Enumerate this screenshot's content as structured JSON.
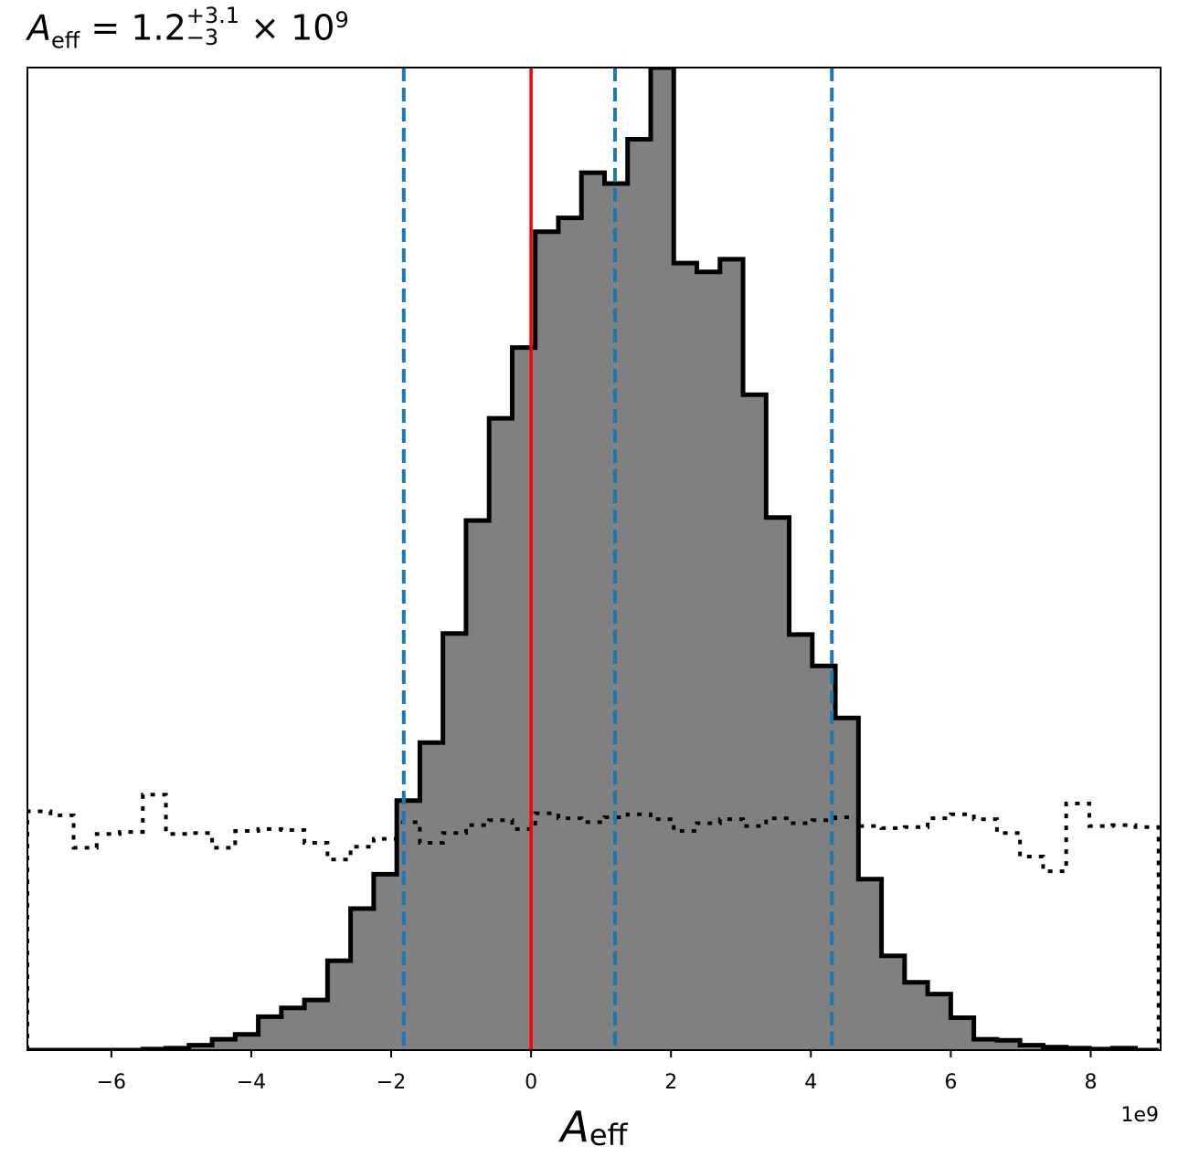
{
  "chart_data": {
    "type": "histogram",
    "title": {
      "symbol": "A",
      "subscript": "eff",
      "equals": "=",
      "median": "1.2",
      "upper": "+3.1",
      "lower": "−3",
      "factor": "× 10",
      "exponent": "9"
    },
    "xlabel": {
      "symbol": "A",
      "subscript": "eff"
    },
    "x_offset_text": "1e9",
    "xlim": [
      -7.2,
      9.0
    ],
    "x_ticks": [
      -6,
      -4,
      -2,
      0,
      2,
      4,
      6,
      8
    ],
    "x_tick_labels": [
      "−6",
      "−4",
      "−2",
      "0",
      "2",
      "4",
      "6",
      "8"
    ],
    "y_ticks_shown": false,
    "posterior": {
      "style": "filled step histogram",
      "fill_color": "#808080",
      "edge_color": "#000000",
      "bins": [
        -7.2,
        -6.87,
        -6.54,
        -6.21,
        -5.88,
        -5.55,
        -5.22,
        -4.89,
        -4.56,
        -4.23,
        -3.9,
        -3.57,
        -3.24,
        -2.91,
        -2.58,
        -2.25,
        -1.92,
        -1.59,
        -1.26,
        -0.93,
        -0.6,
        -0.27,
        0.06,
        0.39,
        0.72,
        1.05,
        1.38,
        1.71,
        2.04,
        2.37,
        2.7,
        3.03,
        3.36,
        3.69,
        4.02,
        4.35,
        4.68,
        5.01,
        5.34,
        5.67,
        6.0,
        6.33,
        6.66,
        6.99,
        7.32,
        7.65,
        7.98,
        8.31,
        8.64,
        8.97
      ],
      "counts": [
        0,
        0,
        0,
        0,
        0,
        0.001,
        0.002,
        0.005,
        0.011,
        0.016,
        0.034,
        0.043,
        0.051,
        0.091,
        0.144,
        0.179,
        0.254,
        0.313,
        0.424,
        0.539,
        0.643,
        0.715,
        0.833,
        0.847,
        0.893,
        0.882,
        0.927,
        1.0,
        0.801,
        0.792,
        0.805,
        0.667,
        0.542,
        0.423,
        0.391,
        0.338,
        0.174,
        0.096,
        0.069,
        0.057,
        0.033,
        0.011,
        0.01,
        0.005,
        0.003,
        0.002,
        0.001,
        0.002,
        0
      ]
    },
    "prior": {
      "style": "dotted step histogram",
      "color": "#000000",
      "bins": [
        -7.2,
        -6.87,
        -6.54,
        -6.21,
        -5.88,
        -5.55,
        -5.22,
        -4.89,
        -4.56,
        -4.23,
        -3.9,
        -3.57,
        -3.24,
        -2.91,
        -2.58,
        -2.25,
        -1.92,
        -1.59,
        -1.26,
        -0.93,
        -0.6,
        -0.27,
        0.06,
        0.39,
        0.72,
        1.05,
        1.38,
        1.71,
        2.04,
        2.37,
        2.7,
        3.03,
        3.36,
        3.69,
        4.02,
        4.35,
        4.68,
        5.01,
        5.34,
        5.67,
        6.0,
        6.33,
        6.66,
        6.99,
        7.32,
        7.65,
        7.98,
        8.31,
        8.64,
        8.97
      ],
      "counts": [
        0.243,
        0.239,
        0.206,
        0.22,
        0.222,
        0.26,
        0.22,
        0.221,
        0.206,
        0.223,
        0.225,
        0.224,
        0.211,
        0.194,
        0.207,
        0.215,
        0.232,
        0.211,
        0.221,
        0.229,
        0.234,
        0.225,
        0.241,
        0.236,
        0.232,
        0.237,
        0.24,
        0.235,
        0.223,
        0.231,
        0.235,
        0.228,
        0.236,
        0.231,
        0.234,
        0.237,
        0.228,
        0.226,
        0.227,
        0.236,
        0.24,
        0.235,
        0.221,
        0.197,
        0.182,
        0.251,
        0.228,
        0.229,
        0.227
      ]
    },
    "vertical_lines": [
      {
        "x": 0,
        "color": "#ff0000",
        "style": "solid"
      },
      {
        "x": -1.82,
        "color": "#1f77b4",
        "style": "dashed"
      },
      {
        "x": 1.2,
        "color": "#1f77b4",
        "style": "dashed"
      },
      {
        "x": 4.3,
        "color": "#1f77b4",
        "style": "dashed"
      }
    ]
  }
}
